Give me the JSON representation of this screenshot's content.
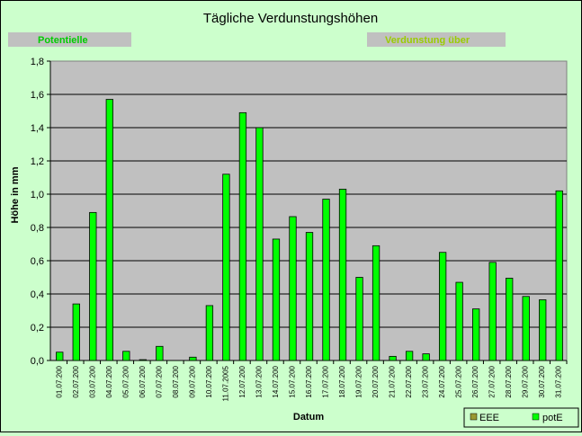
{
  "chart_data": {
    "type": "bar",
    "title": "Tägliche Verdunstungshöhen",
    "subtitle_left": "Potentielle",
    "subtitle_right": "Verdunstung über",
    "xlabel": "Datum",
    "ylabel": "Höhe in mm",
    "ylim": [
      0,
      1.8
    ],
    "yticks": [
      "0,0",
      "0,2",
      "0,4",
      "0,6",
      "0,8",
      "1,0",
      "1,2",
      "1,4",
      "1,6",
      "1,8"
    ],
    "grid": true,
    "legend_position": "bottom-right",
    "categories": [
      "01.07.200",
      "02.07.200",
      "03.07.200",
      "04.07.200",
      "05.07.200",
      "06.07.200",
      "07.07.200",
      "08.07.200",
      "09.07.200",
      "10.07.200",
      "11.07.2005",
      "12.07.200",
      "13.07.200",
      "14.07.200",
      "15.07.200",
      "16.07.200",
      "17.07.200",
      "18.07.200",
      "19.07.200",
      "20.07.200",
      "21.07.200",
      "22.07.200",
      "23.07.200",
      "24.07.200",
      "25.07.200",
      "26.07.200",
      "27.07.200",
      "28.07.200",
      "29.07.200",
      "30.07.200",
      "31.07.200"
    ],
    "series": [
      {
        "name": "EEE",
        "color": "#999933",
        "values": [
          0,
          0,
          0,
          0,
          0,
          0,
          0,
          0,
          0,
          0,
          0,
          0,
          0,
          0,
          0,
          0,
          0,
          0,
          0,
          0,
          0,
          0,
          0,
          0,
          0,
          0,
          0,
          0,
          0,
          0,
          0
        ]
      },
      {
        "name": "potE",
        "color": "#00ff00",
        "values": [
          0.05,
          0.34,
          0.89,
          1.57,
          0.055,
          0.005,
          0.085,
          0,
          0.02,
          0.33,
          1.12,
          1.49,
          1.4,
          0.73,
          0.865,
          0.77,
          0.97,
          1.03,
          0.5,
          0.69,
          0.025,
          0.055,
          0.04,
          0.65,
          0.47,
          0.31,
          0.59,
          0.495,
          0.385,
          0.365,
          1.02
        ]
      }
    ]
  },
  "colors": {
    "background": "#ccffcc",
    "plot_area": "#c0c0c0",
    "subtitle_box": "#c0c0c0",
    "subtitle_left_text": "#00cc00",
    "subtitle_right_text": "#99cc00"
  }
}
